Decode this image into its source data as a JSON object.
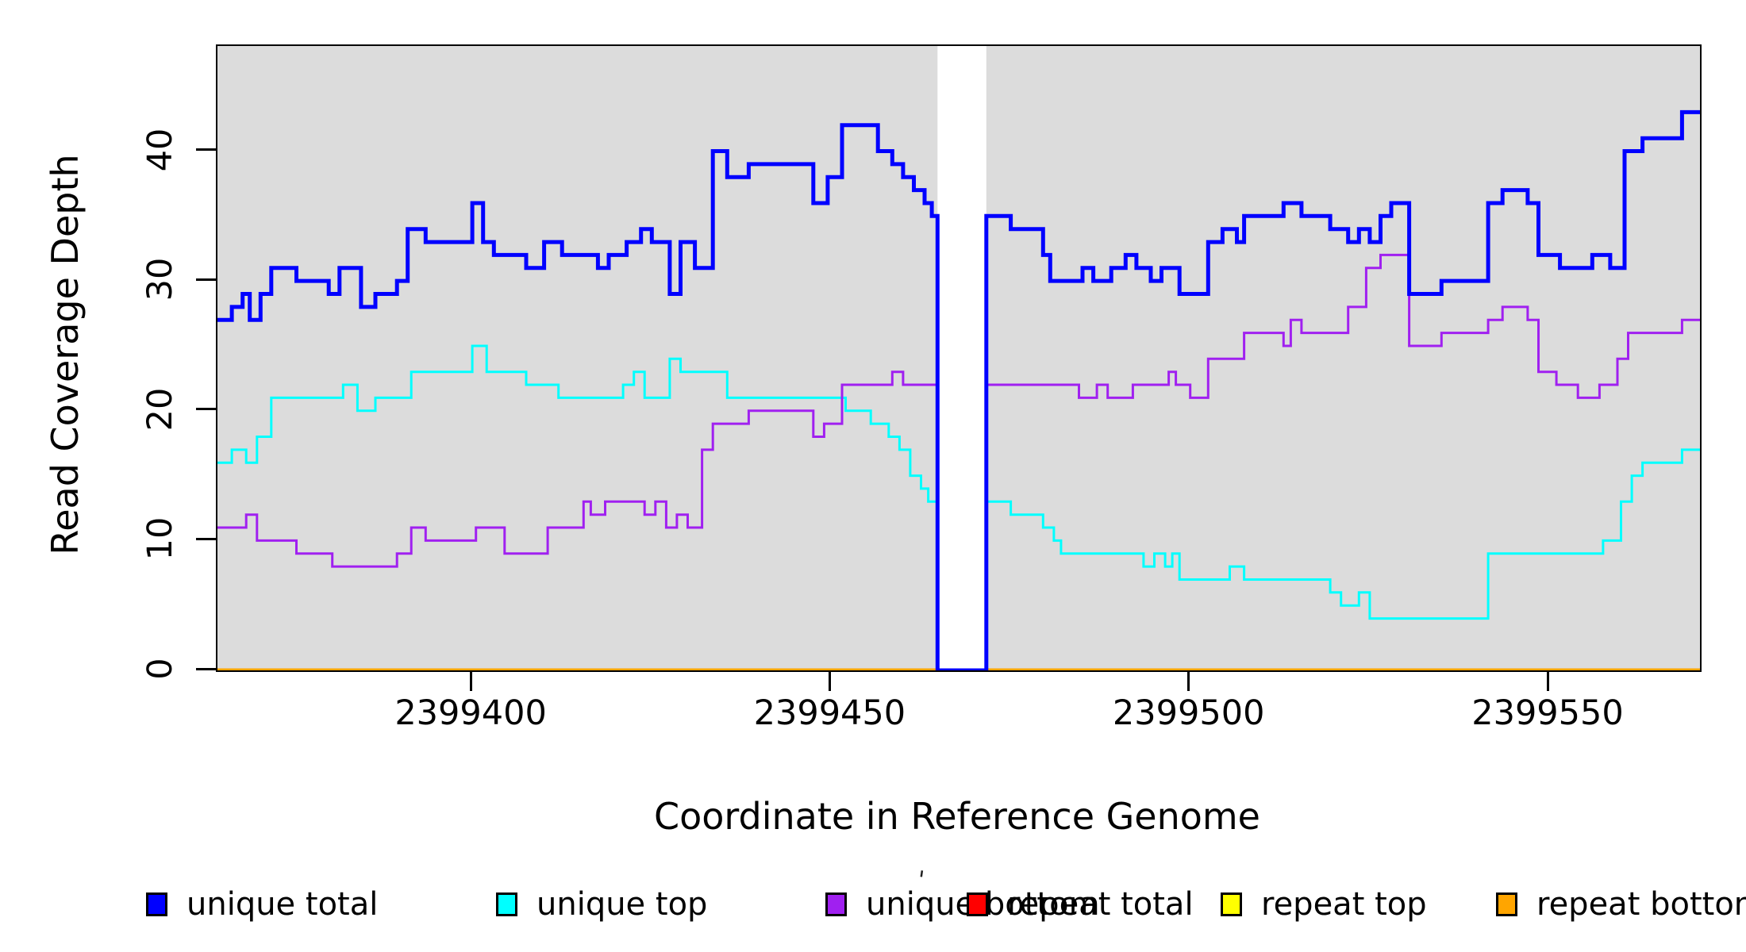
{
  "figure": {
    "background": "#FFFFFF",
    "stray_mark": "'"
  },
  "legend": {
    "items": [
      {
        "label": "unique total",
        "color": "#0000FF",
        "x": 184
      },
      {
        "label": "unique top",
        "color": "#00FFFF",
        "x": 625
      },
      {
        "label": "unique bottom",
        "color": "#A020F0",
        "x": 1040
      },
      {
        "label": "repeat total",
        "color": "#FF0000",
        "x": 1218
      },
      {
        "label": "repeat top",
        "color": "#FFFF00",
        "x": 1538
      },
      {
        "label": "repeat bottom",
        "color": "#FFA500",
        "x": 1885
      }
    ]
  },
  "chart_data": {
    "type": "line",
    "subtype": "step",
    "title": "",
    "xlabel": "Coordinate in Reference Genome",
    "ylabel": "Read Coverage Depth",
    "xlim": [
      2399364.5,
      2399571.0
    ],
    "ylim": [
      0,
      48.1
    ],
    "grid": false,
    "plot_bg": "#DCDCDC",
    "gap_region": {
      "x0": 2399464.8,
      "x1": 2399471.6,
      "color": "#FFFFFF"
    },
    "xticks": [
      {
        "v": 2399400,
        "label": "2399400"
      },
      {
        "v": 2399450,
        "label": "2399450"
      },
      {
        "v": 2399500,
        "label": "2399500"
      },
      {
        "v": 2399550,
        "label": "2399550"
      }
    ],
    "yticks": [
      {
        "v": 0,
        "label": "0"
      },
      {
        "v": 10,
        "label": "10"
      },
      {
        "v": 20,
        "label": "20"
      },
      {
        "v": 30,
        "label": "30"
      },
      {
        "v": 40,
        "label": "40"
      }
    ],
    "draw_order": [
      "repeat total",
      "repeat top",
      "repeat bottom",
      "unique top",
      "unique bottom",
      "unique total"
    ],
    "series": [
      {
        "name": "unique total",
        "color": "#0000FF",
        "lw": 5,
        "steps": [
          [
            2399364.5,
            27
          ],
          [
            2399366.5,
            28
          ],
          [
            2399368,
            29
          ],
          [
            2399369,
            27
          ],
          [
            2399370.5,
            29
          ],
          [
            2399372,
            31
          ],
          [
            2399375.5,
            30
          ],
          [
            2399380,
            29
          ],
          [
            2399381.5,
            31
          ],
          [
            2399384.5,
            28
          ],
          [
            2399386.5,
            29
          ],
          [
            2399389.5,
            30
          ],
          [
            2399391,
            34
          ],
          [
            2399393.5,
            33
          ],
          [
            2399400,
            36
          ],
          [
            2399401.5,
            33
          ],
          [
            2399403,
            32
          ],
          [
            2399407.5,
            31
          ],
          [
            2399410,
            33
          ],
          [
            2399412.5,
            32
          ],
          [
            2399417.5,
            31
          ],
          [
            2399419,
            32
          ],
          [
            2399421.5,
            33
          ],
          [
            2399423.5,
            34
          ],
          [
            2399425,
            33
          ],
          [
            2399427.5,
            29
          ],
          [
            2399429,
            33
          ],
          [
            2399431,
            31
          ],
          [
            2399433.5,
            40
          ],
          [
            2399435.5,
            38
          ],
          [
            2399438.5,
            39
          ],
          [
            2399447.5,
            36
          ],
          [
            2399449.5,
            38
          ],
          [
            2399451.5,
            42
          ],
          [
            2399456.5,
            40
          ],
          [
            2399458.5,
            39
          ],
          [
            2399460,
            38
          ],
          [
            2399461.5,
            37
          ],
          [
            2399463,
            36
          ],
          [
            2399464,
            35
          ],
          [
            2399464.8,
            0
          ],
          [
            2399471.6,
            35
          ],
          [
            2399475,
            34
          ],
          [
            2399479.5,
            32
          ],
          [
            2399480.5,
            30
          ],
          [
            2399485,
            31
          ],
          [
            2399486.5,
            30
          ],
          [
            2399489,
            31
          ],
          [
            2399491,
            32
          ],
          [
            2399492.5,
            31
          ],
          [
            2399494.5,
            30
          ],
          [
            2399496,
            31
          ],
          [
            2399498.5,
            29
          ],
          [
            2399502.5,
            33
          ],
          [
            2399504.5,
            34
          ],
          [
            2399506.5,
            33
          ],
          [
            2399507.5,
            35
          ],
          [
            2399513,
            36
          ],
          [
            2399515.5,
            35
          ],
          [
            2399519.5,
            34
          ],
          [
            2399522,
            33
          ],
          [
            2399523.5,
            34
          ],
          [
            2399525,
            33
          ],
          [
            2399526.5,
            35
          ],
          [
            2399528,
            36
          ],
          [
            2399530.5,
            29
          ],
          [
            2399535,
            30
          ],
          [
            2399541.5,
            36
          ],
          [
            2399543.5,
            37
          ],
          [
            2399547,
            36
          ],
          [
            2399548.5,
            32
          ],
          [
            2399551.5,
            31
          ],
          [
            2399556,
            32
          ],
          [
            2399558.5,
            31
          ],
          [
            2399560.5,
            40
          ],
          [
            2399563,
            41
          ],
          [
            2399568.5,
            43
          ]
        ]
      },
      {
        "name": "unique top",
        "color": "#00FFFF",
        "lw": 3,
        "steps": [
          [
            2399364.5,
            16
          ],
          [
            2399366.5,
            17
          ],
          [
            2399368.5,
            16
          ],
          [
            2399370,
            18
          ],
          [
            2399372,
            21
          ],
          [
            2399382,
            22
          ],
          [
            2399384,
            20
          ],
          [
            2399386.5,
            21
          ],
          [
            2399391.5,
            23
          ],
          [
            2399400,
            25
          ],
          [
            2399402,
            23
          ],
          [
            2399407.5,
            22
          ],
          [
            2399412,
            21
          ],
          [
            2399421,
            22
          ],
          [
            2399422.5,
            23
          ],
          [
            2399424,
            21
          ],
          [
            2399427.5,
            24
          ],
          [
            2399429,
            23
          ],
          [
            2399435.5,
            21
          ],
          [
            2399452,
            20
          ],
          [
            2399455.5,
            19
          ],
          [
            2399458,
            18
          ],
          [
            2399459.5,
            17
          ],
          [
            2399461,
            15
          ],
          [
            2399462.5,
            14
          ],
          [
            2399463.5,
            13
          ],
          [
            2399464.8,
            0
          ],
          [
            2399471.6,
            13
          ],
          [
            2399475,
            12
          ],
          [
            2399479.5,
            11
          ],
          [
            2399481,
            10
          ],
          [
            2399482,
            9
          ],
          [
            2399493.5,
            8
          ],
          [
            2399495,
            9
          ],
          [
            2399496.5,
            8
          ],
          [
            2399497.5,
            9
          ],
          [
            2399498.5,
            7
          ],
          [
            2399505.5,
            8
          ],
          [
            2399507.5,
            7
          ],
          [
            2399519.5,
            6
          ],
          [
            2399521,
            5
          ],
          [
            2399523.5,
            6
          ],
          [
            2399525,
            4
          ],
          [
            2399541.5,
            9
          ],
          [
            2399557.5,
            10
          ],
          [
            2399560,
            13
          ],
          [
            2399561.5,
            15
          ],
          [
            2399563,
            16
          ],
          [
            2399568.5,
            17
          ]
        ]
      },
      {
        "name": "unique bottom",
        "color": "#A020F0",
        "lw": 3,
        "steps": [
          [
            2399364.5,
            11
          ],
          [
            2399368.5,
            12
          ],
          [
            2399370,
            10
          ],
          [
            2399375.5,
            9
          ],
          [
            2399380.5,
            8
          ],
          [
            2399389.5,
            9
          ],
          [
            2399391.5,
            11
          ],
          [
            2399393.5,
            10
          ],
          [
            2399400.5,
            11
          ],
          [
            2399404.5,
            9
          ],
          [
            2399410.5,
            11
          ],
          [
            2399415.5,
            13
          ],
          [
            2399416.5,
            12
          ],
          [
            2399418.5,
            13
          ],
          [
            2399424,
            12
          ],
          [
            2399425.5,
            13
          ],
          [
            2399427,
            11
          ],
          [
            2399428.5,
            12
          ],
          [
            2399430,
            11
          ],
          [
            2399432,
            17
          ],
          [
            2399433.5,
            19
          ],
          [
            2399438.5,
            20
          ],
          [
            2399447.5,
            18
          ],
          [
            2399449,
            19
          ],
          [
            2399451.5,
            22
          ],
          [
            2399458.5,
            23
          ],
          [
            2399460,
            22
          ],
          [
            2399464.8,
            0
          ],
          [
            2399471.6,
            22
          ],
          [
            2399484.5,
            21
          ],
          [
            2399487,
            22
          ],
          [
            2399488.5,
            21
          ],
          [
            2399492,
            22
          ],
          [
            2399497,
            23
          ],
          [
            2399498,
            22
          ],
          [
            2399500,
            21
          ],
          [
            2399502.5,
            24
          ],
          [
            2399507.5,
            26
          ],
          [
            2399513,
            25
          ],
          [
            2399514,
            27
          ],
          [
            2399515.5,
            26
          ],
          [
            2399522,
            28
          ],
          [
            2399524.5,
            31
          ],
          [
            2399526.5,
            32
          ],
          [
            2399530.5,
            25
          ],
          [
            2399535,
            26
          ],
          [
            2399541.5,
            27
          ],
          [
            2399543.5,
            28
          ],
          [
            2399547,
            27
          ],
          [
            2399548.5,
            23
          ],
          [
            2399551,
            22
          ],
          [
            2399554,
            21
          ],
          [
            2399557,
            22
          ],
          [
            2399559.5,
            24
          ],
          [
            2399561,
            26
          ],
          [
            2399568.5,
            27
          ]
        ]
      },
      {
        "name": "repeat total",
        "color": "#FF0000",
        "lw": 3,
        "steps": [
          [
            2399364.5,
            0
          ]
        ]
      },
      {
        "name": "repeat top",
        "color": "#FFFF00",
        "lw": 3,
        "steps": [
          [
            2399364.5,
            0
          ]
        ]
      },
      {
        "name": "repeat bottom",
        "color": "#FFA500",
        "lw": 5,
        "steps": [
          [
            2399364.5,
            0
          ]
        ]
      }
    ]
  }
}
